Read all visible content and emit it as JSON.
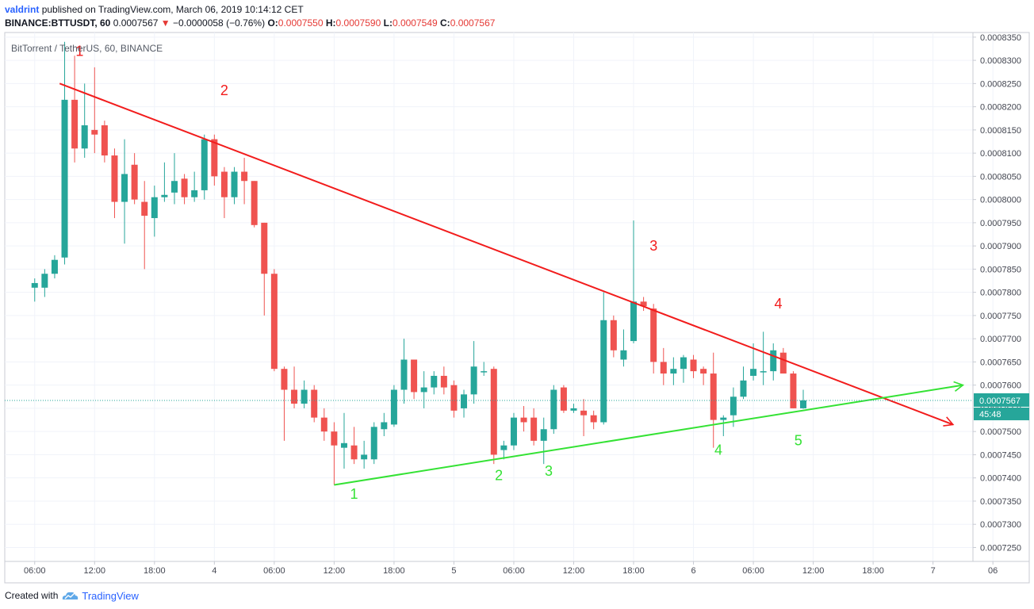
{
  "header": {
    "author": "valdrint",
    "published_text": "published on TradingView.com, March 06, 2019 10:14:12 CET",
    "symbol": "BINANCE:BTTUSDT, 60",
    "last": "0.0007567",
    "change": "−0.0000058 (−0.76%)",
    "o_label": "O:",
    "o": "0.0007550",
    "h_label": "H:",
    "h": "0.0007590",
    "l_label": "L:",
    "l": "0.0007549",
    "c_label": "C:",
    "c": "0.0007567"
  },
  "footer": {
    "created_with": "Created with",
    "brand": "TradingView"
  },
  "colors": {
    "up": "#26a69a",
    "down": "#ef5350",
    "resistance": "#f21c1c",
    "support": "#34e234",
    "price_line": "#26a69a"
  },
  "chart_data": {
    "type": "candlestick",
    "title": "BitTorrent / TetherUS, 60, BINANCE",
    "ylim": [
      0.000722,
      0.000836
    ],
    "y_ticks": [
      "0.0008350",
      "0.0008300",
      "0.0008250",
      "0.0008200",
      "0.0008150",
      "0.0008100",
      "0.0008050",
      "0.0008000",
      "0.0007950",
      "0.0007900",
      "0.0007850",
      "0.0007800",
      "0.0007750",
      "0.0007700",
      "0.0007650",
      "0.0007600",
      "0.0007550",
      "0.0007500",
      "0.0007450",
      "0.0007400",
      "0.0007350",
      "0.0007300",
      "0.0007250"
    ],
    "x_ticks": [
      "06:00",
      "12:00",
      "18:00",
      "4",
      "06:00",
      "12:00",
      "18:00",
      "5",
      "06:00",
      "12:00",
      "18:00",
      "6",
      "06:00",
      "12:00",
      "18:00",
      "7",
      "06"
    ],
    "x_range_hours": [
      -3,
      94
    ],
    "last_price_label": "0.0007567",
    "countdown_label": "45:48",
    "candles": [
      {
        "o": 0.000781,
        "h": 0.000783,
        "l": 0.000778,
        "c": 0.000782
      },
      {
        "o": 0.000781,
        "h": 0.000785,
        "l": 0.000779,
        "c": 0.000784
      },
      {
        "o": 0.000784,
        "h": 0.000788,
        "l": 0.000783,
        "c": 0.000787
      },
      {
        "o": 0.0007875,
        "h": 0.000834,
        "l": 0.000786,
        "c": 0.0008215
      },
      {
        "o": 0.0008215,
        "h": 0.000831,
        "l": 0.000808,
        "c": 0.000811
      },
      {
        "o": 0.000811,
        "h": 0.000825,
        "l": 0.000809,
        "c": 0.000816
      },
      {
        "o": 0.000815,
        "h": 0.0008285,
        "l": 0.00081,
        "c": 0.000814
      },
      {
        "o": 0.000816,
        "h": 0.000817,
        "l": 0.000808,
        "c": 0.0008095
      },
      {
        "o": 0.0008095,
        "h": 0.000811,
        "l": 0.000796,
        "c": 0.0007995
      },
      {
        "o": 0.0007995,
        "h": 0.000813,
        "l": 0.0007905,
        "c": 0.0008055
      },
      {
        "o": 0.0008075,
        "h": 0.00081,
        "l": 0.000799,
        "c": 0.0008
      },
      {
        "o": 0.0007995,
        "h": 0.000804,
        "l": 0.000785,
        "c": 0.0007965
      },
      {
        "o": 0.000796,
        "h": 0.000803,
        "l": 0.000792,
        "c": 0.0008005
      },
      {
        "o": 0.0008005,
        "h": 0.000808,
        "l": 0.0007995,
        "c": 0.000801
      },
      {
        "o": 0.0008015,
        "h": 0.00081,
        "l": 0.000799,
        "c": 0.000804
      },
      {
        "o": 0.0008045,
        "h": 0.0008055,
        "l": 0.000799,
        "c": 0.0008005
      },
      {
        "o": 0.0008005,
        "h": 0.000806,
        "l": 0.0007995,
        "c": 0.000802
      },
      {
        "o": 0.000802,
        "h": 0.000814,
        "l": 0.0008,
        "c": 0.000813
      },
      {
        "o": 0.000813,
        "h": 0.000814,
        "l": 0.000803,
        "c": 0.000805
      },
      {
        "o": 0.000806,
        "h": 0.000807,
        "l": 0.000796,
        "c": 0.0008005
      },
      {
        "o": 0.0008005,
        "h": 0.000807,
        "l": 0.000799,
        "c": 0.000806
      },
      {
        "o": 0.000806,
        "h": 0.000809,
        "l": 0.000799,
        "c": 0.000804
      },
      {
        "o": 0.000804,
        "h": 0.000804,
        "l": 0.000794,
        "c": 0.0007945
      },
      {
        "o": 0.000795,
        "h": 0.000795,
        "l": 0.000775,
        "c": 0.000784
      },
      {
        "o": 0.000784,
        "h": 0.000785,
        "l": 0.000763,
        "c": 0.0007635
      },
      {
        "o": 0.0007635,
        "h": 0.000764,
        "l": 0.000748,
        "c": 0.000759
      },
      {
        "o": 0.000759,
        "h": 0.000764,
        "l": 0.000755,
        "c": 0.000756
      },
      {
        "o": 0.000756,
        "h": 0.000761,
        "l": 0.000755,
        "c": 0.000759
      },
      {
        "o": 0.000759,
        "h": 0.00076,
        "l": 0.000752,
        "c": 0.000753
      },
      {
        "o": 0.000753,
        "h": 0.000755,
        "l": 0.000748,
        "c": 0.00075
      },
      {
        "o": 0.00075,
        "h": 0.000752,
        "l": 0.0007385,
        "c": 0.000747
      },
      {
        "o": 0.0007465,
        "h": 0.000754,
        "l": 0.000742,
        "c": 0.0007475
      },
      {
        "o": 0.000747,
        "h": 0.000751,
        "l": 0.000743,
        "c": 0.000744
      },
      {
        "o": 0.000744,
        "h": 0.000748,
        "l": 0.000742,
        "c": 0.000745
      },
      {
        "o": 0.000744,
        "h": 0.000752,
        "l": 0.000743,
        "c": 0.000751
      },
      {
        "o": 0.0007505,
        "h": 0.000754,
        "l": 0.000749,
        "c": 0.000752
      },
      {
        "o": 0.0007515,
        "h": 0.00076,
        "l": 0.000751,
        "c": 0.000759
      },
      {
        "o": 0.000759,
        "h": 0.00077,
        "l": 0.000756,
        "c": 0.0007655
      },
      {
        "o": 0.0007655,
        "h": 0.0007655,
        "l": 0.000757,
        "c": 0.0007585
      },
      {
        "o": 0.0007585,
        "h": 0.000763,
        "l": 0.000755,
        "c": 0.0007595
      },
      {
        "o": 0.0007595,
        "h": 0.000763,
        "l": 0.000758,
        "c": 0.000762
      },
      {
        "o": 0.000762,
        "h": 0.000764,
        "l": 0.000758,
        "c": 0.0007595
      },
      {
        "o": 0.00076,
        "h": 0.000761,
        "l": 0.000753,
        "c": 0.0007545
      },
      {
        "o": 0.000755,
        "h": 0.000759,
        "l": 0.000753,
        "c": 0.000758
      },
      {
        "o": 0.000758,
        "h": 0.0007695,
        "l": 0.000756,
        "c": 0.000764
      },
      {
        "o": 0.000763,
        "h": 0.000765,
        "l": 0.000762,
        "c": 0.000763
      },
      {
        "o": 0.0007635,
        "h": 0.000764,
        "l": 0.000743,
        "c": 0.000745
      },
      {
        "o": 0.000746,
        "h": 0.000748,
        "l": 0.000744,
        "c": 0.000747
      },
      {
        "o": 0.000747,
        "h": 0.000754,
        "l": 0.000746,
        "c": 0.000753
      },
      {
        "o": 0.000753,
        "h": 0.0007555,
        "l": 0.00075,
        "c": 0.000752
      },
      {
        "o": 0.000753,
        "h": 0.000755,
        "l": 0.000747,
        "c": 0.000748
      },
      {
        "o": 0.000748,
        "h": 0.000753,
        "l": 0.000743,
        "c": 0.0007505
      },
      {
        "o": 0.0007505,
        "h": 0.00076,
        "l": 0.0007495,
        "c": 0.000759
      },
      {
        "o": 0.0007595,
        "h": 0.00076,
        "l": 0.000754,
        "c": 0.0007545
      },
      {
        "o": 0.0007545,
        "h": 0.000756,
        "l": 0.000754,
        "c": 0.000755
      },
      {
        "o": 0.0007545,
        "h": 0.000757,
        "l": 0.000749,
        "c": 0.0007535
      },
      {
        "o": 0.0007535,
        "h": 0.0007545,
        "l": 0.0007505,
        "c": 0.000752
      },
      {
        "o": 0.000752,
        "h": 0.00078,
        "l": 0.0007515,
        "c": 0.000774
      },
      {
        "o": 0.000774,
        "h": 0.000775,
        "l": 0.000766,
        "c": 0.0007675
      },
      {
        "o": 0.0007655,
        "h": 0.000772,
        "l": 0.000764,
        "c": 0.0007675
      },
      {
        "o": 0.0007695,
        "h": 0.0007955,
        "l": 0.000769,
        "c": 0.000778
      },
      {
        "o": 0.000778,
        "h": 0.000779,
        "l": 0.000776,
        "c": 0.000777
      },
      {
        "o": 0.0007765,
        "h": 0.0007775,
        "l": 0.0007625,
        "c": 0.000765
      },
      {
        "o": 0.000765,
        "h": 0.000768,
        "l": 0.00076,
        "c": 0.0007625
      },
      {
        "o": 0.0007625,
        "h": 0.000766,
        "l": 0.00076,
        "c": 0.0007635
      },
      {
        "o": 0.0007635,
        "h": 0.0007665,
        "l": 0.0007605,
        "c": 0.000766
      },
      {
        "o": 0.0007655,
        "h": 0.0007665,
        "l": 0.0007615,
        "c": 0.000763
      },
      {
        "o": 0.0007635,
        "h": 0.000764,
        "l": 0.00076,
        "c": 0.0007625
      },
      {
        "o": 0.0007625,
        "h": 0.000767,
        "l": 0.0007465,
        "c": 0.0007525
      },
      {
        "o": 0.0007525,
        "h": 0.0007535,
        "l": 0.000749,
        "c": 0.000753
      },
      {
        "o": 0.0007535,
        "h": 0.0007595,
        "l": 0.000751,
        "c": 0.0007575
      },
      {
        "o": 0.0007575,
        "h": 0.000764,
        "l": 0.000757,
        "c": 0.000761
      },
      {
        "o": 0.000762,
        "h": 0.000769,
        "l": 0.000761,
        "c": 0.0007635
      },
      {
        "o": 0.000763,
        "h": 0.0007715,
        "l": 0.00076,
        "c": 0.000763
      },
      {
        "o": 0.000763,
        "h": 0.000769,
        "l": 0.000761,
        "c": 0.0007675
      },
      {
        "o": 0.000767,
        "h": 0.000768,
        "l": 0.0007625,
        "c": 0.0007625
      },
      {
        "o": 0.0007625,
        "h": 0.000763,
        "l": 0.000755,
        "c": 0.000755
      },
      {
        "o": 0.000755,
        "h": 0.000759,
        "l": 0.0007549,
        "c": 0.0007567
      }
    ],
    "trendlines": [
      {
        "name": "resistance",
        "color": "#f21c1c",
        "from": {
          "i": 2.5,
          "price": 0.000825
        },
        "to": {
          "i": 92,
          "price": 0.0007515
        },
        "arrow": true
      },
      {
        "name": "support",
        "color": "#34e234",
        "from": {
          "i": 30,
          "price": 0.0007385
        },
        "to": {
          "i": 93,
          "price": 0.00076
        },
        "arrow": true
      }
    ],
    "annotations": [
      {
        "text": "1",
        "color": "#f21c1c",
        "i": 4.5,
        "price": 0.000831
      },
      {
        "text": "2",
        "color": "#f21c1c",
        "i": 19,
        "price": 0.0008225
      },
      {
        "text": "3",
        "color": "#f21c1c",
        "i": 62,
        "price": 0.000789
      },
      {
        "text": "4",
        "color": "#f21c1c",
        "i": 74.5,
        "price": 0.0007765
      },
      {
        "text": "1",
        "color": "#34e234",
        "i": 32,
        "price": 0.0007355
      },
      {
        "text": "2",
        "color": "#34e234",
        "i": 46.5,
        "price": 0.0007395
      },
      {
        "text": "3",
        "color": "#34e234",
        "i": 51.5,
        "price": 0.0007405
      },
      {
        "text": "4",
        "color": "#34e234",
        "i": 68.5,
        "price": 0.000745
      },
      {
        "text": "5",
        "color": "#34e234",
        "i": 76.5,
        "price": 0.000747
      }
    ]
  }
}
